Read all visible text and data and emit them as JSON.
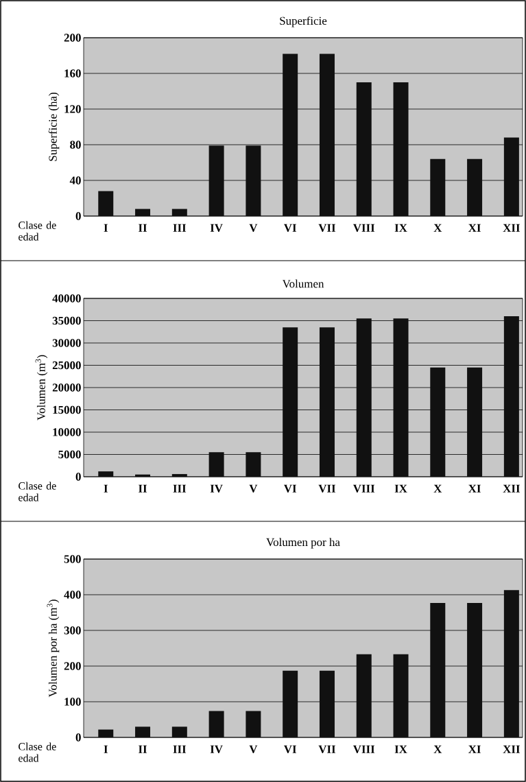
{
  "chart_data": [
    {
      "type": "bar",
      "title": "Superficie",
      "xlabel": "Clase de edad",
      "ylabel": "Superficie (ha)",
      "categories": [
        "I",
        "II",
        "III",
        "IV",
        "V",
        "VI",
        "VII",
        "VIII",
        "IX",
        "X",
        "XI",
        "XII"
      ],
      "values": [
        28,
        8,
        8,
        79,
        79,
        182,
        182,
        150,
        150,
        64,
        64,
        88
      ],
      "color": "#111111",
      "ylim": [
        0,
        200
      ],
      "yticks": [
        0,
        40,
        80,
        120,
        160,
        200
      ],
      "grid": "y"
    },
    {
      "type": "bar",
      "title": "Volumen",
      "xlabel": "Clase de edad",
      "ylabel": "Volumen (m$^{3}$)",
      "categories": [
        "I",
        "II",
        "III",
        "IV",
        "V",
        "VI",
        "VII",
        "VIII",
        "IX",
        "X",
        "XI",
        "XII"
      ],
      "values": [
        1200,
        500,
        600,
        5500,
        5500,
        33500,
        33500,
        35500,
        35500,
        24500,
        24500,
        36000
      ],
      "color": "#111111",
      "ylim": [
        0,
        40000
      ],
      "yticks": [
        0,
        5000,
        10000,
        15000,
        20000,
        25000,
        30000,
        35000,
        40000
      ],
      "grid": "y"
    },
    {
      "type": "bar",
      "title": "Volumen por ha",
      "xlabel": "Clase de edad",
      "ylabel": "Volumen por ha (m$^{3}$)",
      "categories": [
        "I",
        "II",
        "III",
        "IV",
        "V",
        "VI",
        "VII",
        "VIII",
        "IX",
        "X",
        "XI",
        "XII"
      ],
      "values": [
        22,
        30,
        30,
        74,
        74,
        187,
        187,
        233,
        233,
        377,
        377,
        413
      ],
      "color": "#111111",
      "ylim": [
        0,
        500
      ],
      "yticks": [
        0,
        100,
        200,
        300,
        400,
        500
      ],
      "grid": "y"
    }
  ]
}
